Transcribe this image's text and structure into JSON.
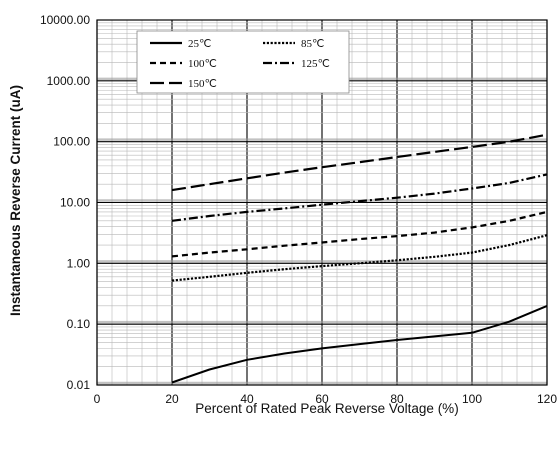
{
  "chart_data": {
    "type": "line",
    "xlabel": "Percent of  Rated Peak Reverse Voltage (%)",
    "ylabel": "Instantaneous Reverse Current (uA)",
    "x_ticks": [
      "0",
      "20",
      "40",
      "60",
      "80",
      "100",
      "120"
    ],
    "y_ticks": [
      "0.01",
      "0.10",
      "1.00",
      "10.00",
      "100.00",
      "1000.00",
      "10000.00"
    ],
    "xlim": [
      0,
      120
    ],
    "ylim": [
      0.01,
      10000
    ],
    "y_scale": "log",
    "grid": true,
    "legend_position": "top-left",
    "series": [
      {
        "name": "25℃",
        "style": "solid",
        "x": [
          20,
          30,
          40,
          50,
          60,
          70,
          80,
          90,
          100,
          110,
          120
        ],
        "y": [
          0.011,
          0.018,
          0.026,
          0.033,
          0.04,
          0.047,
          0.055,
          0.063,
          0.072,
          0.11,
          0.2
        ]
      },
      {
        "name": "85℃",
        "style": "dotted",
        "x": [
          20,
          30,
          40,
          50,
          60,
          70,
          80,
          90,
          100,
          110,
          120
        ],
        "y": [
          0.52,
          0.6,
          0.7,
          0.8,
          0.9,
          1.0,
          1.12,
          1.28,
          1.5,
          2.0,
          2.9
        ]
      },
      {
        "name": "100℃",
        "style": "dashed",
        "x": [
          20,
          30,
          40,
          50,
          60,
          70,
          80,
          90,
          100,
          110,
          120
        ],
        "y": [
          1.3,
          1.5,
          1.7,
          1.95,
          2.2,
          2.5,
          2.8,
          3.2,
          3.9,
          5.0,
          7.0
        ]
      },
      {
        "name": "125℃",
        "style": "dash-dot",
        "x": [
          20,
          30,
          40,
          50,
          60,
          70,
          80,
          90,
          100,
          110,
          120
        ],
        "y": [
          5.0,
          6.0,
          7.0,
          8.0,
          9.2,
          10.5,
          12.0,
          14.0,
          17.0,
          21.0,
          29.0
        ]
      },
      {
        "name": "150℃",
        "style": "long-dash",
        "x": [
          20,
          30,
          40,
          50,
          60,
          70,
          80,
          90,
          100,
          110,
          120
        ],
        "y": [
          16,
          20,
          25,
          31,
          38,
          46,
          56,
          68,
          82,
          100,
          130
        ]
      }
    ]
  }
}
